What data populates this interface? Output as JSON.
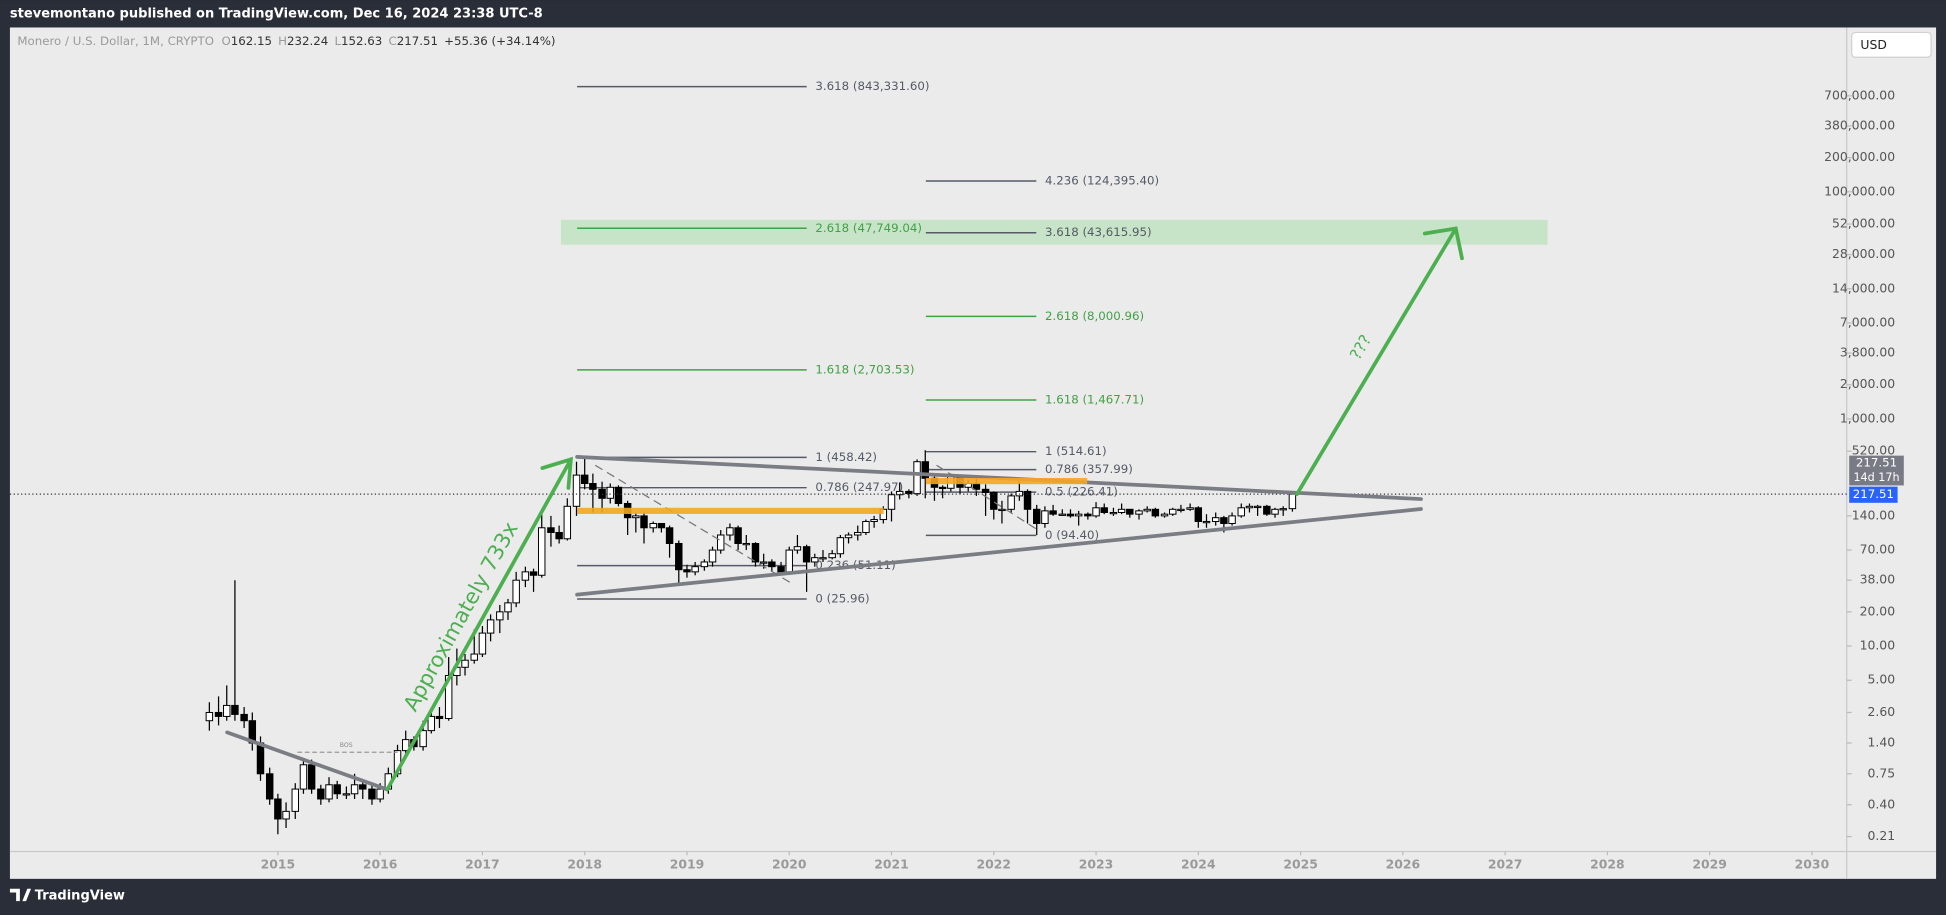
{
  "header": {
    "published": "stevemontano published on TradingView.com, Dec 16, 2024 23:38 UTC-8",
    "brand": "TradingView",
    "currency": "USD"
  },
  "chart_data": {
    "type": "candlestick",
    "title": "Monero / U.S. Dollar, 1M, CRYPTO",
    "ohlc_letters": [
      "O",
      "H",
      "L",
      "C"
    ],
    "change": "+55.36 (+34.14%)",
    "countdown": "14d 17h",
    "log_scale": true,
    "up_color": "#ffffff",
    "down_color": "#000000",
    "outline_color": "#000000",
    "xlim": [
      2012.38,
      2030.34
    ],
    "xticks": [
      2015,
      2016,
      2017,
      2018,
      2019,
      2020,
      2021,
      2022,
      2023,
      2024,
      2025,
      2026,
      2027,
      2028,
      2029,
      2030
    ],
    "ylim": [
      0.155,
      2800000
    ],
    "yticks": [
      {
        "value": 700000,
        "label": "700,000.00"
      },
      {
        "value": 380000,
        "label": "380,000.00"
      },
      {
        "value": 200000,
        "label": "200,000.00"
      },
      {
        "value": 100000,
        "label": "100,000.00"
      },
      {
        "value": 52000,
        "label": "52,000.00"
      },
      {
        "value": 28000,
        "label": "28,000.00"
      },
      {
        "value": 14000,
        "label": "14,000.00"
      },
      {
        "value": 7000,
        "label": "7,000.00"
      },
      {
        "value": 3800,
        "label": "3,800.00"
      },
      {
        "value": 2000,
        "label": "2,000.00"
      },
      {
        "value": 1000,
        "label": "1,000.00"
      },
      {
        "value": 520,
        "label": "520.00"
      },
      {
        "value": 140,
        "label": "140.00"
      },
      {
        "value": 70,
        "label": "70.00"
      },
      {
        "value": 38,
        "label": "38.00"
      },
      {
        "value": 20,
        "label": "20.00"
      },
      {
        "value": 10,
        "label": "10.00"
      },
      {
        "value": 5,
        "label": "5.00"
      },
      {
        "value": 2.6,
        "label": "2.60"
      },
      {
        "value": 1.4,
        "label": "1.40"
      },
      {
        "value": 0.75,
        "label": "0.75"
      },
      {
        "value": 0.4,
        "label": "0.40"
      },
      {
        "value": 0.21,
        "label": "0.21"
      }
    ],
    "x": [
      2014.33,
      2014.42,
      2014.5,
      2014.58,
      2014.67,
      2014.75,
      2014.83,
      2014.92,
      2015,
      2015.08,
      2015.17,
      2015.25,
      2015.33,
      2015.42,
      2015.5,
      2015.58,
      2015.67,
      2015.75,
      2015.83,
      2015.92,
      2016,
      2016.08,
      2016.17,
      2016.25,
      2016.33,
      2016.42,
      2016.5,
      2016.58,
      2016.67,
      2016.75,
      2016.83,
      2016.92,
      2017,
      2017.08,
      2017.17,
      2017.25,
      2017.33,
      2017.42,
      2017.5,
      2017.58,
      2017.67,
      2017.75,
      2017.83,
      2017.92,
      2018,
      2018.08,
      2018.17,
      2018.25,
      2018.33,
      2018.42,
      2018.5,
      2018.58,
      2018.67,
      2018.75,
      2018.83,
      2018.92,
      2019,
      2019.08,
      2019.17,
      2019.25,
      2019.33,
      2019.42,
      2019.5,
      2019.58,
      2019.67,
      2019.75,
      2019.83,
      2019.92,
      2020,
      2020.08,
      2020.17,
      2020.25,
      2020.33,
      2020.42,
      2020.5,
      2020.58,
      2020.67,
      2020.75,
      2020.83,
      2020.92,
      2021,
      2021.08,
      2021.17,
      2021.25,
      2021.33,
      2021.42,
      2021.5,
      2021.58,
      2021.67,
      2021.75,
      2021.83,
      2021.92,
      2022,
      2022.08,
      2022.17,
      2022.25,
      2022.33,
      2022.42,
      2022.5,
      2022.58,
      2022.67,
      2022.75,
      2022.83,
      2022.92,
      2023,
      2023.08,
      2023.17,
      2023.25,
      2023.33,
      2023.42,
      2023.5,
      2023.58,
      2023.67,
      2023.75,
      2023.83,
      2023.92,
      2024,
      2024.08,
      2024.17,
      2024.25,
      2024.33,
      2024.42,
      2024.5,
      2024.58,
      2024.67,
      2024.75,
      2024.83,
      2024.92
    ],
    "open": [
      2.2,
      2.6,
      2.4,
      3.0,
      2.5,
      2.2,
      1.4,
      0.75,
      0.45,
      0.3,
      0.35,
      0.55,
      0.9,
      0.55,
      0.45,
      0.6,
      0.5,
      0.5,
      0.6,
      0.55,
      0.45,
      0.55,
      0.75,
      1.2,
      1.5,
      1.3,
      1.8,
      2.4,
      2.3,
      5.5,
      6.5,
      7.5,
      8.5,
      13,
      17,
      20,
      24,
      38,
      45,
      42,
      110,
      100,
      88,
      170,
      320,
      270,
      240,
      200,
      250,
      180,
      135,
      140,
      110,
      120,
      110,
      80,
      47,
      45,
      50,
      55,
      70,
      95,
      110,
      80,
      80,
      55,
      55,
      50,
      45,
      70,
      75,
      55,
      60,
      60,
      65,
      90,
      95,
      100,
      125,
      130,
      160,
      215,
      230,
      220,
      420,
      300,
      250,
      245,
      310,
      250,
      270,
      240,
      225,
      160,
      160,
      210,
      230,
      160,
      120,
      155,
      145,
      145,
      140,
      145,
      140,
      165,
      150,
      150,
      160,
      145,
      155,
      160,
      140,
      145,
      160,
      160,
      165,
      125,
      125,
      135,
      120,
      140,
      165,
      170,
      170,
      145,
      160,
      162.15
    ],
    "high": [
      3.2,
      3.6,
      4.5,
      38,
      2.9,
      2.6,
      1.6,
      0.85,
      0.5,
      0.42,
      0.62,
      1.0,
      1.0,
      0.6,
      0.7,
      0.65,
      0.58,
      0.75,
      0.65,
      0.6,
      0.62,
      0.85,
      1.35,
      1.8,
      1.6,
      2.2,
      2.8,
      2.9,
      8.0,
      9.5,
      8.5,
      14,
      15,
      19,
      23,
      26,
      45,
      50,
      48,
      150,
      140,
      115,
      200,
      420,
      470,
      330,
      280,
      270,
      260,
      190,
      150,
      150,
      125,
      120,
      115,
      85,
      52,
      55,
      58,
      75,
      105,
      120,
      115,
      95,
      82,
      65,
      58,
      55,
      75,
      95,
      78,
      65,
      70,
      70,
      95,
      100,
      115,
      130,
      140,
      170,
      230,
      275,
      240,
      440,
      530,
      330,
      260,
      330,
      320,
      290,
      300,
      265,
      230,
      190,
      220,
      280,
      240,
      175,
      170,
      175,
      160,
      160,
      155,
      150,
      185,
      180,
      165,
      180,
      160,
      160,
      170,
      165,
      150,
      165,
      175,
      180,
      170,
      145,
      150,
      140,
      150,
      180,
      180,
      175,
      175,
      165,
      170,
      232.24
    ],
    "low": [
      1.8,
      2.0,
      2.2,
      2.2,
      1.9,
      1.2,
      0.65,
      0.4,
      0.22,
      0.25,
      0.3,
      0.5,
      0.5,
      0.4,
      0.42,
      0.45,
      0.45,
      0.45,
      0.45,
      0.4,
      0.42,
      0.5,
      0.7,
      1.05,
      1.2,
      1.2,
      1.7,
      1.9,
      2.2,
      4.5,
      5.5,
      7.0,
      8,
      11,
      13,
      17,
      22,
      33,
      30,
      40,
      75,
      80,
      85,
      140,
      240,
      150,
      150,
      180,
      170,
      95,
      100,
      80,
      100,
      100,
      60,
      35,
      40,
      42,
      46,
      50,
      65,
      85,
      70,
      70,
      50,
      48,
      45,
      42,
      44,
      65,
      30,
      50,
      55,
      58,
      60,
      80,
      85,
      95,
      110,
      120,
      125,
      195,
      200,
      210,
      200,
      190,
      200,
      230,
      220,
      230,
      210,
      140,
      130,
      120,
      150,
      190,
      120,
      95,
      110,
      140,
      140,
      135,
      115,
      130,
      135,
      145,
      140,
      145,
      135,
      130,
      150,
      135,
      135,
      140,
      150,
      155,
      110,
      110,
      115,
      100,
      115,
      135,
      150,
      140,
      140,
      135,
      140,
      152.63
    ],
    "close": [
      2.6,
      2.4,
      3.0,
      2.5,
      2.2,
      1.4,
      0.75,
      0.45,
      0.3,
      0.35,
      0.55,
      0.9,
      0.55,
      0.45,
      0.6,
      0.5,
      0.5,
      0.6,
      0.55,
      0.45,
      0.55,
      0.75,
      1.2,
      1.5,
      1.3,
      1.8,
      2.4,
      2.3,
      5.5,
      6.5,
      7.5,
      8.5,
      13,
      17,
      20,
      24,
      38,
      45,
      42,
      110,
      100,
      88,
      170,
      320,
      270,
      240,
      200,
      250,
      180,
      135,
      140,
      110,
      120,
      110,
      80,
      47,
      45,
      50,
      55,
      70,
      95,
      110,
      80,
      80,
      55,
      55,
      50,
      45,
      70,
      75,
      55,
      60,
      60,
      65,
      90,
      95,
      100,
      125,
      130,
      160,
      215,
      230,
      220,
      420,
      300,
      250,
      245,
      310,
      250,
      270,
      240,
      225,
      160,
      160,
      210,
      230,
      160,
      120,
      155,
      145,
      145,
      140,
      145,
      140,
      165,
      150,
      150,
      160,
      145,
      155,
      160,
      140,
      145,
      160,
      160,
      165,
      125,
      125,
      135,
      120,
      140,
      165,
      170,
      170,
      145,
      160,
      162.15,
      217.51
    ],
    "target_zone": {
      "ylim": [
        34200,
        56600
      ],
      "color": "#c4e3c4"
    },
    "fib_left": [
      {
        "value": 843331.6,
        "label": "3.618 (843,331.60)",
        "color": "#555a66"
      },
      {
        "value": 47749.04,
        "label": "2.618 (47,749.04)",
        "color": "#43a047"
      },
      {
        "value": 2703.53,
        "label": "1.618 (2,703.53)",
        "color": "#43a047"
      },
      {
        "value": 458.42,
        "label": "1 (458.42)",
        "color": "#555a66"
      },
      {
        "value": 247.97,
        "label": "0.786 (247.97)",
        "color": "#555a66"
      },
      {
        "value": 51.11,
        "label": "0.236 (51.11)",
        "color": "#555a66"
      },
      {
        "value": 25.96,
        "label": "0 (25.96)",
        "color": "#555a66"
      }
    ],
    "fib_right": [
      {
        "value": 124395.4,
        "label": "4.236 (124,395.40)",
        "color": "#555a66"
      },
      {
        "value": 43615.95,
        "label": "3.618 (43,615.95)",
        "color": "#555a66"
      },
      {
        "value": 8000.96,
        "label": "2.618 (8,000.96)",
        "color": "#43a047"
      },
      {
        "value": 1467.71,
        "label": "1.618 (1,467.71)",
        "color": "#43a047"
      },
      {
        "value": 514.61,
        "label": "1 (514.61)",
        "color": "#555a66"
      },
      {
        "value": 357.99,
        "label": "0.786 (357.99)",
        "color": "#555a66"
      },
      {
        "value": 226.41,
        "label": "0.5 (226.41)",
        "color": "#555a66"
      },
      {
        "value": 94.4,
        "label": "0 (94.40)",
        "color": "#555a66"
      }
    ],
    "annotations": [
      "Approximately 733x",
      "???",
      "BOS"
    ]
  }
}
